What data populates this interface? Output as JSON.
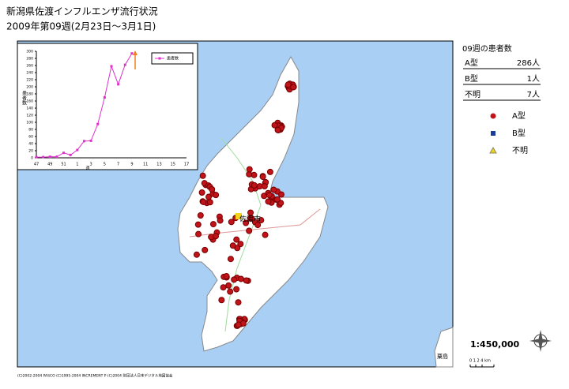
{
  "header": {
    "title": "新潟県佐渡インフルエンザ流行状況",
    "subtitle": "2009年第09週(2月23日～3月1日)"
  },
  "panel": {
    "title": "09週の患者数",
    "rows": [
      {
        "type": "A型",
        "count": "286人"
      },
      {
        "type": "B型",
        "count": "1人"
      },
      {
        "type": "不明",
        "count": "7人"
      }
    ],
    "legend": [
      "A型",
      "B型",
      "不明"
    ]
  },
  "map": {
    "labels": [
      "佐渡市",
      "粟島"
    ],
    "scale": "1:450,000",
    "scale_bar": "0 1 2    4 km",
    "copyright": "(C)2002-2004 PASCO (C)1995-2004 INCREMENT P (C)2004 財団法人日本デジタル地図協会"
  },
  "chart_data": {
    "type": "line",
    "x_label": "週",
    "y_label": "患者数",
    "categories": [
      "47",
      null,
      "49",
      null,
      "51",
      null,
      "1",
      null,
      "3",
      null,
      "5",
      null,
      "7",
      null,
      "9",
      null,
      "11",
      null,
      "13",
      null,
      "15",
      null,
      "17"
    ],
    "series": [
      {
        "name": "患者数",
        "color": "#dd33cc",
        "values": [
          2,
          2,
          3,
          3,
          14,
          8,
          22,
          47,
          48,
          95,
          170,
          258,
          207,
          262,
          294,
          null,
          null,
          null,
          null,
          null,
          null,
          null,
          null
        ]
      }
    ],
    "ylim": [
      0,
      300
    ],
    "yticks": [
      0,
      20,
      40,
      60,
      80,
      100,
      120,
      140,
      160,
      180,
      200,
      220,
      240,
      260,
      280,
      300
    ],
    "legend": "upper-right"
  }
}
